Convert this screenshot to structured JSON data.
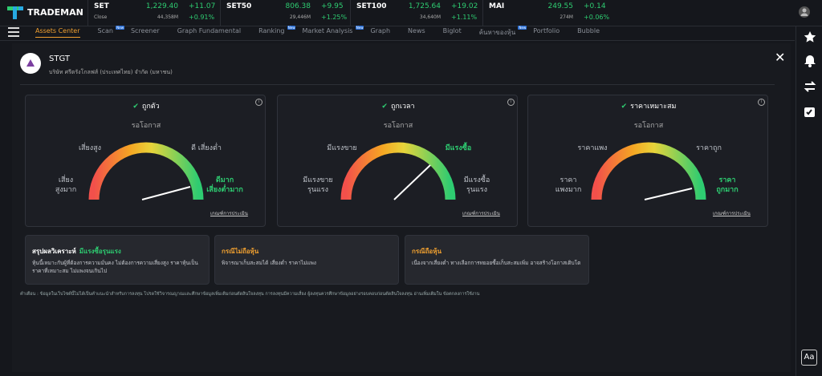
{
  "header": {
    "logo": "TRADEMAN",
    "tickers": [
      {
        "name": "SET",
        "price": "1,229.40",
        "change": "+11.07",
        "sub": "Close",
        "volume": "44,358M",
        "pct": "+0.91%"
      },
      {
        "name": "SET50",
        "price": "806.38",
        "change": "+9.95",
        "volume": "29,446M",
        "pct": "+1.25%"
      },
      {
        "name": "SET100",
        "price": "1,725.64",
        "change": "+19.02",
        "volume": "34,640M",
        "pct": "+1.11%"
      },
      {
        "name": "MAI",
        "price": "249.55",
        "change": "+0.14",
        "volume": "274M",
        "pct": "+0.06%"
      }
    ]
  },
  "nav": {
    "items": [
      {
        "label": "Assets Center"
      },
      {
        "label": "Scan",
        "badge": "New"
      },
      {
        "label": "Screener"
      },
      {
        "label": "Graph Fundamental"
      },
      {
        "label": "Ranking",
        "badge": "New"
      },
      {
        "label": "Market Analysis",
        "badge": "New"
      },
      {
        "label": "Graph"
      },
      {
        "label": "News"
      },
      {
        "label": "Biglot"
      },
      {
        "label": "ค้นหาของหุ้น",
        "badge": "New"
      },
      {
        "label": "Portfolio"
      },
      {
        "label": "Bubble"
      }
    ]
  },
  "stock": {
    "symbol": "STGT",
    "company": "บริษัท ศรีตรังโกลฟส์ (ประเทศไทย) จำกัด (มหาชน)"
  },
  "gauges": [
    {
      "title": "ถูกตัว",
      "status": "รอโอกาส",
      "top_left": "เสี่ยงสูง",
      "top_right": "ดี เสี่ยงต่ำ",
      "bottom_left": "เสี่ยง\nสูงมาก",
      "bottom_right": "ดีมาก\nเสี่ยงต่ำมาก",
      "link": "เกณฑ์การประเมิน"
    },
    {
      "title": "ถูกเวลา",
      "status": "รอโอกาส",
      "top_left": "มีแรงขาย",
      "top_right": "มีแรงซื้อ",
      "bottom_left": "มีแรงขาย\nรุนแรง",
      "bottom_right": "มีแรงซื้อ\nรุนแรง",
      "link": "เกณฑ์การประเมิน"
    },
    {
      "title": "ราคาเหมาะสม",
      "status": "รอโอกาส",
      "top_left": "ราคาแพง",
      "top_right": "ราคาถูก",
      "bottom_left": "ราคา\nแพงมาก",
      "bottom_right": "ราคา\nถูกมาก",
      "link": "เกณฑ์การประเมิน"
    }
  ],
  "summary": [
    {
      "title": "สรุปผลวิเคราะห์",
      "highlight": "มีแรงซื้อรุนแรง",
      "text": "หุ้นนี้เหมาะกับผู้ที่ต้องการความมั่นคง ไม่ต้องการความเสี่ยงสูง ราคาหุ้นเป็นราคาที่เหมาะสม ไม่แพงจนเกินไป"
    },
    {
      "title": "กรณีไม่ถือหุ้น",
      "text": "พิจารณาเก็บสะสมได้ เสี่ยงต่ำ ราคาไม่แพง"
    },
    {
      "title": "กรณีถือหุ้น",
      "text": "เนื่องจากเสี่ยงต่ำ ทางเลือกการทยอยซื้อเก็บสะสมเพิ่ม อาจสร้างโอกาสเติบโต"
    }
  ],
  "disclaimer": "คำเตือน : ข้อมูลในเว็บไซต์นี้ไม่ได้เป็นคำแนะนำสำหรับการลงทุน โปรดใช้วิจารณญาณและศึกษาข้อมูลเพิ่มเติมก่อนตัดสินใจลงทุน การลงทุนมีความเสี่ยง ผู้ลงทุนควรศึกษาข้อมูลอย่างรอบคอบก่อนตัดสินใจลงทุน อ่านเพิ่มเติมใน ข้อตกลงการใช้งาน",
  "font_button": "Aa"
}
